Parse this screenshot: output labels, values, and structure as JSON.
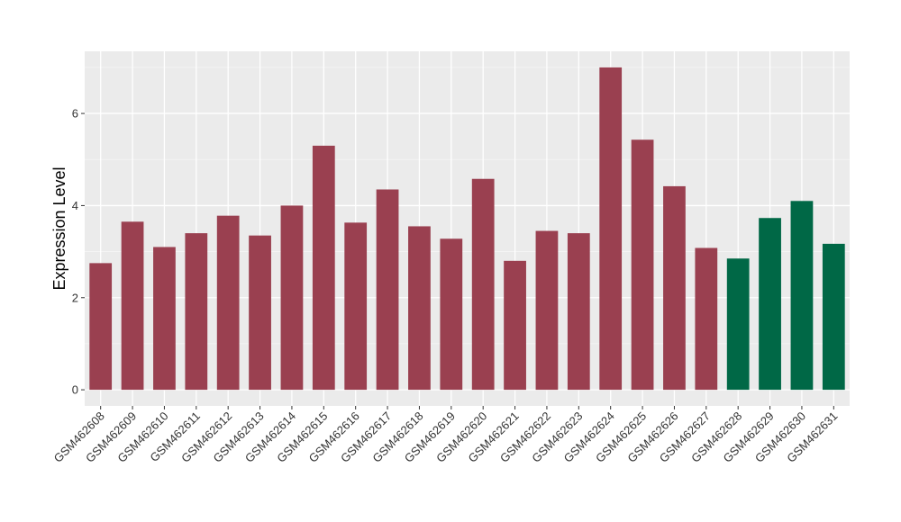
{
  "chart_data": {
    "type": "bar",
    "ylabel": "Expression Level",
    "xlabel": "",
    "ylim": [
      -0.35,
      7.35
    ],
    "yticks": [
      0,
      2,
      4,
      6
    ],
    "grid": true,
    "legend": "none",
    "background": "#EBEBEB",
    "colors": {
      "group_a": "#9A4050",
      "group_b": "#006846"
    },
    "categories": [
      "GSM462608",
      "GSM462609",
      "GSM462610",
      "GSM462611",
      "GSM462612",
      "GSM462613",
      "GSM462614",
      "GSM462615",
      "GSM462616",
      "GSM462617",
      "GSM462618",
      "GSM462619",
      "GSM462620",
      "GSM462621",
      "GSM462622",
      "GSM462623",
      "GSM462624",
      "GSM462625",
      "GSM462626",
      "GSM462627",
      "GSM462628",
      "GSM462629",
      "GSM462630",
      "GSM462631"
    ],
    "values": [
      2.75,
      3.65,
      3.1,
      3.4,
      3.78,
      3.35,
      4.0,
      5.3,
      3.63,
      4.35,
      3.55,
      3.28,
      4.58,
      2.8,
      3.45,
      3.4,
      7.0,
      5.43,
      4.42,
      3.08,
      2.85,
      3.73,
      4.1,
      3.17
    ],
    "groups": [
      "a",
      "a",
      "a",
      "a",
      "a",
      "a",
      "a",
      "a",
      "a",
      "a",
      "a",
      "a",
      "a",
      "a",
      "a",
      "a",
      "a",
      "a",
      "a",
      "a",
      "b",
      "b",
      "b",
      "b"
    ]
  }
}
